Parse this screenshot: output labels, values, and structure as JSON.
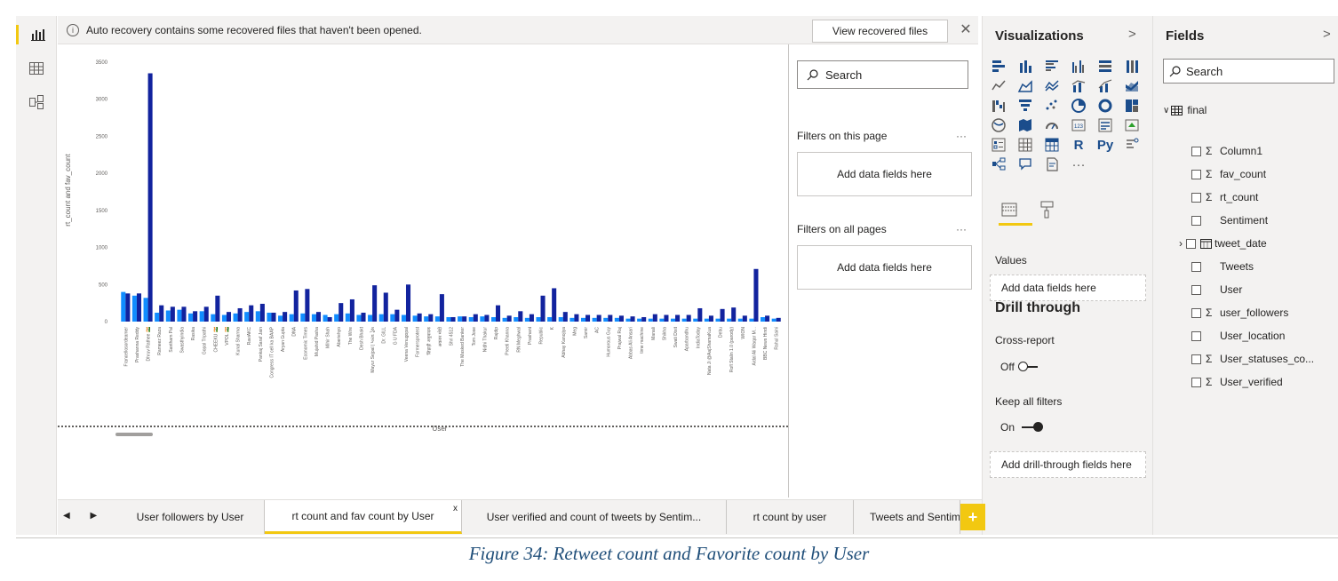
{
  "banner": {
    "message": "Auto recovery contains some recovered files that haven't been opened.",
    "button": "View recovered files",
    "info_icon": "i",
    "close": "✕"
  },
  "filters": {
    "search_placeholder": "Search",
    "on_this_page": "Filters on this page",
    "on_all_pages": "Filters on all pages",
    "add_fields": "Add data fields here",
    "more": "···"
  },
  "visualizations": {
    "title": "Visualizations",
    "chevron": ">",
    "r_label": "R",
    "py_label": "Py",
    "more": "···",
    "values_label": "Values",
    "values_drop": "Add data fields here",
    "drill_title": "Drill through",
    "cross_report_label": "Cross-report",
    "cross_report_state": "Off",
    "keep_filters_label": "Keep all filters",
    "keep_filters_state": "On",
    "drill_drop": "Add drill-through fields here"
  },
  "fields": {
    "title": "Fields",
    "chevron": ">",
    "search_placeholder": "Search",
    "table_name": "final",
    "items": [
      {
        "name": "Column1",
        "sigma": true
      },
      {
        "name": "fav_count",
        "sigma": true
      },
      {
        "name": "rt_count",
        "sigma": true
      },
      {
        "name": "Sentiment",
        "sigma": false
      },
      {
        "name": "tweet_date",
        "sigma": false,
        "date": true
      },
      {
        "name": "Tweets",
        "sigma": false
      },
      {
        "name": "User",
        "sigma": false
      },
      {
        "name": "user_followers",
        "sigma": true
      },
      {
        "name": "User_location",
        "sigma": false
      },
      {
        "name": "User_statuses_co...",
        "sigma": true
      },
      {
        "name": "User_verified",
        "sigma": true
      }
    ]
  },
  "tabs": {
    "items": [
      "User followers by User",
      "rt count and fav count by User",
      "User verified and count of tweets by Sentim...",
      "rt count by user",
      "Tweets and Sentim"
    ],
    "active": 1,
    "close": "x",
    "add": "+",
    "arrows": "◀ ▶"
  },
  "caption": "Figure 34: Retweet count and Favorite count by User",
  "chart_data": {
    "type": "bar",
    "ylabel": "rt_count and fav_count",
    "xlabel": "User",
    "ylim": [
      0,
      3500
    ],
    "yticks": [
      0,
      500,
      1000,
      1500,
      2000,
      2500,
      3000,
      3500
    ],
    "categories": [
      "Francellosordeamer",
      "Prashanna Reddy",
      "Dhruv Rathee 🇮🇳",
      "Rameez Raza",
      "Santham Pal",
      "Swasthyindia",
      "Rasika",
      "Gopal Tripathi",
      "CHEEKU 🇮🇳",
      "VPOL 🇮🇳",
      "Kunal Sharma",
      "RaviAKC",
      "Pankaj Saraf Jain",
      "Congress IT cell ka BAAP",
      "Aryan Gupta",
      "DNA",
      "Economic Times",
      "Mujahid Pasha",
      "Mihir Shah",
      "Aberiehyo",
      "The Wire",
      "Desh Bhakt",
      "Mayur Sejpal | પારવ ડ્રેસ",
      "Dr. GILL",
      "G U FDA",
      "Veena Venugopal",
      "Farmersprotest",
      "ज़िहाड़ी अनुवादक",
      "अवतार मोदी",
      "Shri 4512",
      "The Masked Banker",
      "Tom Jose",
      "Nidhi Thakur",
      "Rajdip",
      "Preeti Khanna",
      "RN Meghwal",
      "Prashant",
      "Republic",
      "K",
      "Abhay Kanojiya",
      "Meg",
      "Samir",
      "AC",
      "Humorous Guy",
      "Prajwal Raj",
      "Abbas Ali Ansari",
      "time machine",
      "Manali",
      "Shikha",
      "Swati Dixit",
      "Aparbandhu",
      "IndiaToday",
      "Nata Ji @AajShamaKua",
      "Debu",
      "Rofl Stalin 1.0 (parody)",
      "WION",
      "Aidal Ali Waqar M...",
      "BBC News Hindi",
      "Rahul Saini"
    ],
    "series": [
      {
        "name": "rt_count",
        "color": "#118dff",
        "values": [
          400,
          350,
          320,
          120,
          150,
          160,
          110,
          140,
          100,
          90,
          110,
          130,
          140,
          120,
          80,
          100,
          110,
          100,
          90,
          100,
          110,
          90,
          90,
          100,
          100,
          90,
          80,
          70,
          70,
          60,
          70,
          60,
          70,
          60,
          50,
          60,
          50,
          60,
          60,
          60,
          50,
          50,
          50,
          50,
          50,
          40,
          40,
          40,
          40,
          40,
          40,
          40,
          40,
          40,
          40,
          40,
          40,
          60,
          40
        ]
      },
      {
        "name": "fav_count",
        "color": "#12239e",
        "values": [
          380,
          380,
          3350,
          220,
          200,
          200,
          140,
          200,
          350,
          130,
          180,
          220,
          240,
          120,
          130,
          420,
          440,
          130,
          60,
          250,
          300,
          120,
          490,
          390,
          160,
          500,
          110,
          100,
          370,
          60,
          70,
          100,
          90,
          220,
          80,
          140,
          100,
          350,
          450,
          130,
          100,
          90,
          90,
          90,
          80,
          70,
          60,
          100,
          90,
          90,
          90,
          180,
          80,
          170,
          190,
          80,
          710,
          80,
          50
        ]
      }
    ]
  }
}
